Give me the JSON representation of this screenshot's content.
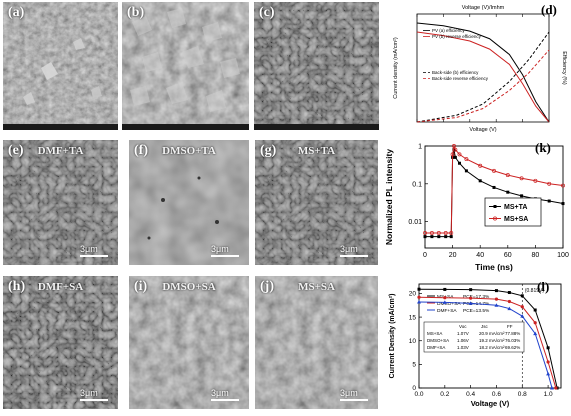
{
  "labels": {
    "a": "(a)",
    "b": "(b)",
    "c": "(c)",
    "d": "(d)",
    "e": "(e)",
    "f": "(f)",
    "g": "(g)",
    "k": "(k)",
    "h": "(h)",
    "i": "(i)",
    "j": "(j)",
    "l": "(l)"
  },
  "overlays": {
    "e": "DMF+TA",
    "f": "DMSO+TA",
    "g": "MS+TA",
    "h": "DMF+SA",
    "i": "DMSO+SA",
    "j": "MS+SA"
  },
  "scalebars": {
    "e": "3μm",
    "f": "3μm",
    "g": "3μm",
    "h": "3μm",
    "i": "3μm",
    "j": "3μm"
  },
  "chart_data": [
    {
      "id": "d",
      "type": "line",
      "xlabel": "Voltage (V)",
      "top_xlabel": "Voltage (V)/Imhm",
      "ylabel": "Current density (mA/cm²)",
      "y2label": "Efficiency (%)",
      "legend": [
        "PV (a) efficiency",
        "PV (b) reverse efficiency",
        "Back-side (b) efficiency",
        "Back-side reverse efficiency"
      ],
      "xlim": [
        0,
        1.0
      ],
      "series": [
        {
          "x": [
            0.0,
            0.2,
            0.4,
            0.55,
            0.7,
            0.8,
            0.9,
            1.0
          ],
          "values": [
            22,
            21.4,
            20.2,
            18.5,
            15,
            10.5,
            4.5,
            0
          ]
        },
        {
          "x": [
            0.0,
            0.2,
            0.4,
            0.55,
            0.7,
            0.8,
            0.9,
            1.0
          ],
          "values": [
            20,
            19.2,
            18,
            16.2,
            12.8,
            8.5,
            3.5,
            0
          ]
        },
        {
          "x": [
            0.0,
            0.3,
            0.5,
            0.7,
            0.85,
            1.0
          ],
          "values": [
            0,
            1.5,
            4,
            9,
            14,
            20
          ]
        },
        {
          "x": [
            0.0,
            0.3,
            0.5,
            0.7,
            0.85,
            1.0
          ],
          "values": [
            0,
            1,
            3,
            7,
            11,
            16
          ]
        }
      ]
    },
    {
      "id": "k",
      "type": "scatter",
      "xlabel": "Time (ns)",
      "ylabel": "Normalized PL intensity",
      "xlim": [
        0,
        100
      ],
      "ylim": [
        0.002,
        1
      ],
      "yscale": "log",
      "xticks": [
        "0",
        "20",
        "40",
        "60",
        "80",
        "100"
      ],
      "yticks": [
        "0.01",
        "0.1",
        "1"
      ],
      "legend": [
        "MS+TA",
        "MS+SA"
      ],
      "series": [
        {
          "name": "MS+TA",
          "color": "#000000",
          "x": [
            0,
            5,
            10,
            15,
            19,
            20,
            21,
            22,
            25,
            30,
            40,
            50,
            60,
            70,
            80,
            90,
            100
          ],
          "values": [
            0.004,
            0.004,
            0.004,
            0.004,
            0.004,
            0.5,
            0.8,
            0.5,
            0.35,
            0.22,
            0.12,
            0.08,
            0.06,
            0.048,
            0.04,
            0.035,
            0.03
          ]
        },
        {
          "name": "MS+SA",
          "color": "#cc2222",
          "x": [
            0,
            5,
            10,
            15,
            19,
            20,
            21,
            22,
            25,
            30,
            40,
            50,
            60,
            70,
            80,
            90,
            100
          ],
          "values": [
            0.005,
            0.005,
            0.005,
            0.005,
            0.005,
            0.6,
            1.0,
            0.8,
            0.6,
            0.45,
            0.3,
            0.22,
            0.17,
            0.14,
            0.12,
            0.1,
            0.09
          ]
        }
      ]
    },
    {
      "id": "l",
      "type": "line",
      "xlabel": "Voltage (V)",
      "ylabel": "Current Density (mA/cm²)",
      "xlim": [
        0,
        1.1
      ],
      "ylim": [
        0,
        22
      ],
      "xticks": [
        "0.0",
        "0.2",
        "0.4",
        "0.6",
        "0.8",
        "1.0"
      ],
      "yticks": [
        "0",
        "5",
        "10",
        "15",
        "20"
      ],
      "annotation": "(0.819V)",
      "series": [
        {
          "name": "MS+SA",
          "pce": "PCE=17.3%",
          "color": "#000000",
          "x": [
            0,
            0.2,
            0.4,
            0.6,
            0.7,
            0.8,
            0.9,
            1.0,
            1.07
          ],
          "values": [
            20.9,
            20.85,
            20.8,
            20.6,
            20.2,
            19.5,
            16.5,
            8.5,
            0
          ]
        },
        {
          "name": "DMSO+SA",
          "pce": "PCE=14.7%",
          "color": "#cc2222",
          "x": [
            0,
            0.2,
            0.4,
            0.6,
            0.7,
            0.8,
            0.9,
            1.0,
            1.06
          ],
          "values": [
            19.2,
            19.1,
            19.0,
            18.8,
            18.3,
            17.2,
            13.8,
            5.5,
            0
          ]
        },
        {
          "name": "DMF+SA",
          "pce": "PCE=13.5%",
          "color": "#2244cc",
          "x": [
            0,
            0.2,
            0.4,
            0.6,
            0.7,
            0.8,
            0.9,
            1.0,
            1.03
          ],
          "values": [
            18.2,
            18.1,
            17.9,
            17.5,
            16.8,
            15.2,
            11.5,
            3.0,
            0
          ]
        }
      ],
      "table": {
        "headers": [
          "",
          "Voc",
          "Jsc",
          "FF"
        ],
        "rows": [
          [
            "MS+SA",
            "1.07V",
            "20.9 mA/cm²",
            "77.88%"
          ],
          [
            "DMSO+SA",
            "1.06V",
            "19.2 mA/cm²",
            "76.03%"
          ],
          [
            "DMF+SA",
            "1.03V",
            "18.2 mA/cm²",
            "69.62%"
          ]
        ]
      }
    }
  ]
}
